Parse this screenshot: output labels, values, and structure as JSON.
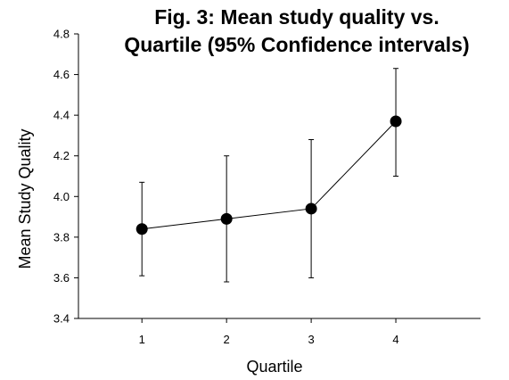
{
  "chart_data": {
    "type": "line",
    "title_lines": [
      "Fig. 3: Mean study quality vs.",
      "Quartile (95% Confidence intervals)"
    ],
    "xlabel": "Quartile",
    "ylabel": "Mean Study Quality",
    "x": [
      1,
      2,
      3,
      4
    ],
    "xlim": [
      0.25,
      5
    ],
    "x_ticks": [
      "1",
      "2",
      "3",
      "4"
    ],
    "ylim": [
      3.4,
      4.8
    ],
    "y_ticks": [
      "3.4",
      "3.6",
      "3.8",
      "4.0",
      "4.2",
      "4.4",
      "4.6",
      "4.8"
    ],
    "grid": false,
    "series": [
      {
        "values": [
          3.84,
          3.89,
          3.94,
          4.37
        ],
        "ci_lower": [
          3.61,
          3.58,
          3.6,
          4.1
        ],
        "ci_upper": [
          4.07,
          4.2,
          4.28,
          4.63
        ],
        "marker": "filled-circle",
        "color": "#000000"
      }
    ]
  }
}
